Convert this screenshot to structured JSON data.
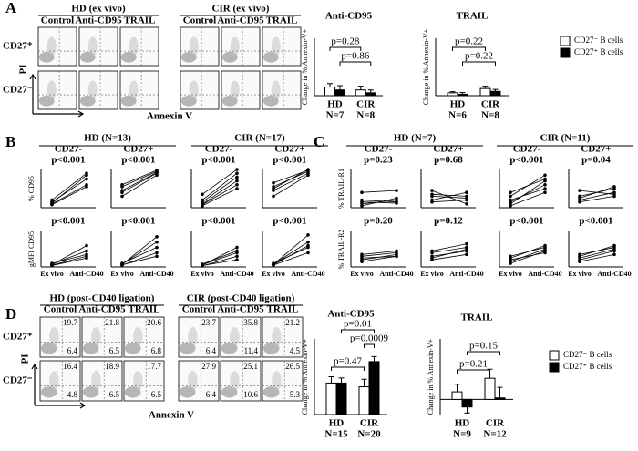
{
  "panel_labels": [
    "A",
    "B",
    "C",
    "D"
  ],
  "flow": {
    "A": {
      "groups": [
        "HD (ex vivo)",
        "CIR (ex vivo)"
      ],
      "columns": [
        "Control",
        "Anti-CD95",
        "TRAIL"
      ],
      "rows": [
        "CD27⁺",
        "CD27⁻"
      ],
      "ylabel": "PI",
      "xlabel": "Annexin V"
    },
    "D": {
      "groups": [
        "HD (post-CD40 ligation)",
        "CIR (post-CD40 ligation)"
      ],
      "columns": [
        "Control",
        "Anti-CD95",
        "TRAIL"
      ],
      "rows": [
        "CD27⁺",
        "CD27⁻"
      ],
      "ylabel": "PI",
      "xlabel": "Annexin V",
      "quadrants": [
        [
          [
            19.7,
            6.4
          ],
          [
            21.8,
            6.5
          ],
          [
            20.6,
            6.8
          ],
          [
            23.7,
            6.4
          ],
          [
            35.8,
            11.4
          ],
          [
            21.2,
            4.5
          ]
        ],
        [
          [
            16.4,
            4.8
          ],
          [
            18.9,
            6.5
          ],
          [
            17.7,
            6.5
          ],
          [
            27.9,
            6.4
          ],
          [
            25.1,
            10.6
          ],
          [
            26.5,
            5.3
          ]
        ]
      ]
    }
  },
  "headers": {
    "B": [
      "HD (N=13)",
      "CIR (N=17)"
    ],
    "C": [
      "HD (N=7)",
      "CIR (N=11)"
    ]
  },
  "chart_data": [
    {
      "type": "bar",
      "title": "Anti-CD95",
      "ylabel": "Change in % Annexin-V+",
      "categories": [
        "HD",
        "CIR"
      ],
      "n_labels": [
        "N=7",
        "N=8"
      ],
      "ylim": [
        0,
        20
      ],
      "series": [
        {
          "name": "CD27⁻ B cells",
          "color": "#ffffff",
          "values": [
            3,
            2
          ],
          "errors": [
            1.2,
            1.3
          ]
        },
        {
          "name": "CD27⁺ B cells",
          "color": "#000000",
          "values": [
            2,
            1
          ],
          "errors": [
            1.5,
            1
          ]
        }
      ],
      "annotations": [
        "p=0.28",
        "p=0.86"
      ]
    },
    {
      "type": "bar",
      "title": "TRAIL",
      "ylabel": "Change in % Annexin-V+",
      "categories": [
        "HD",
        "CIR"
      ],
      "n_labels": [
        "N=6",
        "N=8"
      ],
      "ylim": [
        0,
        20
      ],
      "legend": true,
      "series": [
        {
          "name": "CD27⁻ B cells",
          "color": "#ffffff",
          "values": [
            1,
            2.5
          ],
          "errors": [
            0.4,
            0.8
          ]
        },
        {
          "name": "CD27⁺ B cells",
          "color": "#000000",
          "values": [
            0.5,
            1.5
          ],
          "errors": [
            0.6,
            0.7
          ]
        }
      ],
      "annotations": [
        "p=0.22",
        "p=0.22"
      ]
    },
    {
      "type": "line",
      "title": "CD27-",
      "subtitle": "p<0.001",
      "ylabel": "% CD95",
      "ylim": [
        0,
        100
      ],
      "series": [
        {
          "values": [
            10,
            60
          ]
        },
        {
          "values": [
            15,
            75
          ]
        },
        {
          "values": [
            8,
            55
          ]
        },
        {
          "values": [
            12,
            85
          ]
        },
        {
          "values": [
            20,
            90
          ]
        }
      ]
    },
    {
      "type": "line",
      "title": "CD27+",
      "subtitle": "p<0.001",
      "ylim": [
        0,
        100
      ],
      "series": [
        {
          "values": [
            40,
            90
          ]
        },
        {
          "values": [
            55,
            95
          ]
        },
        {
          "values": [
            30,
            85
          ]
        },
        {
          "values": [
            60,
            98
          ]
        },
        {
          "values": [
            45,
            92
          ]
        }
      ]
    },
    {
      "type": "line",
      "title": "CD27-",
      "subtitle": "p<0.001",
      "ylim": [
        0,
        100
      ],
      "series": [
        {
          "values": [
            5,
            50
          ]
        },
        {
          "values": [
            10,
            70
          ]
        },
        {
          "values": [
            20,
            90
          ]
        },
        {
          "values": [
            15,
            80
          ]
        },
        {
          "values": [
            35,
            100
          ]
        },
        {
          "values": [
            8,
            60
          ]
        }
      ]
    },
    {
      "type": "line",
      "title": "CD27+",
      "subtitle": "p<0.001",
      "ylim": [
        0,
        100
      ],
      "series": [
        {
          "values": [
            45,
            90
          ]
        },
        {
          "values": [
            55,
            95
          ]
        },
        {
          "values": [
            30,
            85
          ]
        },
        {
          "values": [
            65,
            98
          ]
        },
        {
          "values": [
            50,
            100
          ]
        }
      ]
    },
    {
      "type": "line",
      "subtitle": "p<0.001",
      "ylabel": "gMFI CD95",
      "categories": [
        "Ex vivo",
        "Anti-CD40"
      ],
      "ylim": [
        0,
        100
      ],
      "series": [
        {
          "values": [
            5,
            30
          ]
        },
        {
          "values": [
            8,
            45
          ]
        },
        {
          "values": [
            6,
            60
          ]
        },
        {
          "values": [
            10,
            35
          ]
        },
        {
          "values": [
            4,
            25
          ]
        }
      ]
    },
    {
      "type": "line",
      "subtitle": "p<0.001",
      "categories": [
        "Ex vivo",
        "Anti-CD40"
      ],
      "ylim": [
        0,
        100
      ],
      "series": [
        {
          "values": [
            5,
            40
          ]
        },
        {
          "values": [
            8,
            70
          ]
        },
        {
          "values": [
            10,
            55
          ]
        },
        {
          "values": [
            6,
            30
          ]
        },
        {
          "values": [
            7,
            85
          ]
        }
      ]
    },
    {
      "type": "line",
      "subtitle": "p<0.001",
      "categories": [
        "Ex vivo",
        "Anti-CD40"
      ],
      "ylim": [
        0,
        100
      ],
      "series": [
        {
          "values": [
            3,
            30
          ]
        },
        {
          "values": [
            5,
            55
          ]
        },
        {
          "values": [
            4,
            20
          ]
        },
        {
          "values": [
            6,
            40
          ]
        },
        {
          "values": [
            8,
            45
          ]
        }
      ]
    },
    {
      "type": "line",
      "subtitle": "p<0.001",
      "categories": [
        "Ex vivo",
        "Anti-CD40"
      ],
      "ylim": [
        0,
        100
      ],
      "series": [
        {
          "values": [
            5,
            40
          ]
        },
        {
          "values": [
            8,
            70
          ]
        },
        {
          "values": [
            10,
            55
          ]
        },
        {
          "values": [
            6,
            60
          ]
        },
        {
          "values": [
            7,
            90
          ]
        }
      ]
    },
    {
      "type": "line",
      "title": "CD27-",
      "subtitle": "p=0.23",
      "ylabel": "% TRAIL-R1",
      "ylim": [
        0,
        100
      ],
      "series": [
        {
          "values": [
            10,
            20
          ]
        },
        {
          "values": [
            15,
            12
          ]
        },
        {
          "values": [
            40,
            45
          ]
        },
        {
          "values": [
            5,
            25
          ]
        },
        {
          "values": [
            20,
            15
          ]
        }
      ]
    },
    {
      "type": "line",
      "title": "CD27+",
      "subtitle": "p=0.68",
      "ylim": [
        0,
        100
      ],
      "series": [
        {
          "values": [
            30,
            25
          ]
        },
        {
          "values": [
            45,
            10
          ]
        },
        {
          "values": [
            20,
            40
          ]
        },
        {
          "values": [
            35,
            30
          ]
        },
        {
          "values": [
            15,
            20
          ]
        }
      ]
    },
    {
      "type": "line",
      "title": "CD27-",
      "subtitle": "p<0.001",
      "ylim": [
        0,
        100
      ],
      "series": [
        {
          "values": [
            10,
            70
          ]
        },
        {
          "values": [
            15,
            60
          ]
        },
        {
          "values": [
            30,
            85
          ]
        },
        {
          "values": [
            5,
            40
          ]
        },
        {
          "values": [
            20,
            50
          ]
        },
        {
          "values": [
            40,
            75
          ]
        }
      ]
    },
    {
      "type": "line",
      "title": "CD27+",
      "subtitle": "p=0.04",
      "ylim": [
        0,
        100
      ],
      "series": [
        {
          "values": [
            20,
            40
          ]
        },
        {
          "values": [
            30,
            50
          ]
        },
        {
          "values": [
            45,
            35
          ]
        },
        {
          "values": [
            15,
            30
          ]
        },
        {
          "values": [
            25,
            55
          ]
        }
      ]
    },
    {
      "type": "line",
      "subtitle": "p=0.20",
      "ylabel": "% TRAIL-R2",
      "categories": [
        "Ex vivo",
        "Anti-CD40"
      ],
      "ylim": [
        0,
        100
      ],
      "series": [
        {
          "values": [
            20,
            35
          ]
        },
        {
          "values": [
            30,
            40
          ]
        },
        {
          "values": [
            25,
            30
          ]
        },
        {
          "values": [
            15,
            30
          ]
        },
        {
          "values": [
            35,
            45
          ]
        }
      ]
    },
    {
      "type": "line",
      "subtitle": "p=0.12",
      "categories": [
        "Ex vivo",
        "Anti-CD40"
      ],
      "ylim": [
        0,
        100
      ],
      "series": [
        {
          "values": [
            25,
            50
          ]
        },
        {
          "values": [
            40,
            55
          ]
        },
        {
          "values": [
            30,
            45
          ]
        },
        {
          "values": [
            45,
            65
          ]
        },
        {
          "values": [
            20,
            35
          ]
        }
      ]
    },
    {
      "type": "line",
      "subtitle": "p<0.001",
      "categories": [
        "Ex vivo",
        "Anti-CD40"
      ],
      "ylim": [
        0,
        100
      ],
      "series": [
        {
          "values": [
            20,
            40
          ]
        },
        {
          "values": [
            15,
            50
          ]
        },
        {
          "values": [
            25,
            60
          ]
        },
        {
          "values": [
            30,
            55
          ]
        },
        {
          "values": [
            10,
            45
          ]
        }
      ]
    },
    {
      "type": "line",
      "subtitle": "p<0.001",
      "categories": [
        "Ex vivo",
        "Anti-CD40"
      ],
      "ylim": [
        0,
        100
      ],
      "series": [
        {
          "values": [
            15,
            35
          ]
        },
        {
          "values": [
            25,
            50
          ]
        },
        {
          "values": [
            30,
            60
          ]
        },
        {
          "values": [
            20,
            45
          ]
        },
        {
          "values": [
            35,
            55
          ]
        }
      ]
    },
    {
      "type": "bar",
      "title": "Anti-CD95",
      "ylabel": "Change in % Annexin-V+",
      "categories": [
        "HD",
        "CIR"
      ],
      "n_labels": [
        "N=15",
        "N=20"
      ],
      "ylim": [
        0,
        30
      ],
      "series": [
        {
          "name": "CD27⁻ B cells",
          "color": "#ffffff",
          "values": [
            12.5,
            11
          ],
          "errors": [
            2.5,
            3
          ]
        },
        {
          "name": "CD27⁺ B cells",
          "color": "#000000",
          "values": [
            12.5,
            21
          ],
          "errors": [
            2,
            2
          ]
        }
      ],
      "annotations": [
        "p=0.47",
        "p=0.01",
        "p=0.0009"
      ]
    },
    {
      "type": "bar",
      "title": "TRAIL",
      "ylabel": "Change in % Annexin-V+",
      "categories": [
        "HD",
        "CIR"
      ],
      "n_labels": [
        "N=9",
        "N=12"
      ],
      "ylim": [
        -5,
        20
      ],
      "legend": true,
      "series": [
        {
          "name": "CD27⁻ B cells",
          "color": "#ffffff",
          "values": [
            2.5,
            7
          ],
          "errors": [
            2.5,
            3
          ]
        },
        {
          "name": "CD27⁺ B cells",
          "color": "#000000",
          "values": [
            -2.5,
            0.5
          ],
          "errors": [
            2,
            3.5
          ]
        }
      ],
      "annotations": [
        "p=0.21",
        "p=0.15"
      ]
    }
  ]
}
